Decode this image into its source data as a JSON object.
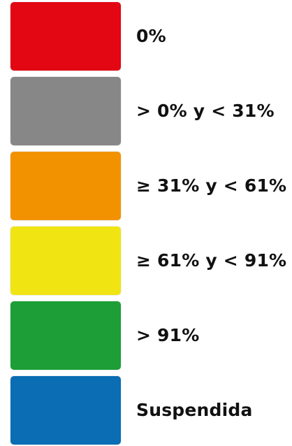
{
  "legend": {
    "items": [
      {
        "label": "0%",
        "color": "#e30613"
      },
      {
        "label": "> 0% y < 31%",
        "color": "#878787"
      },
      {
        "label": "≥ 31% y < 61%",
        "color": "#f39200"
      },
      {
        "label": "≥ 61% y < 91%",
        "color": "#f0e513"
      },
      {
        "label": "> 91%",
        "color": "#1d9e36"
      },
      {
        "label": "Suspendida",
        "color": "#0b6db3"
      }
    ]
  }
}
